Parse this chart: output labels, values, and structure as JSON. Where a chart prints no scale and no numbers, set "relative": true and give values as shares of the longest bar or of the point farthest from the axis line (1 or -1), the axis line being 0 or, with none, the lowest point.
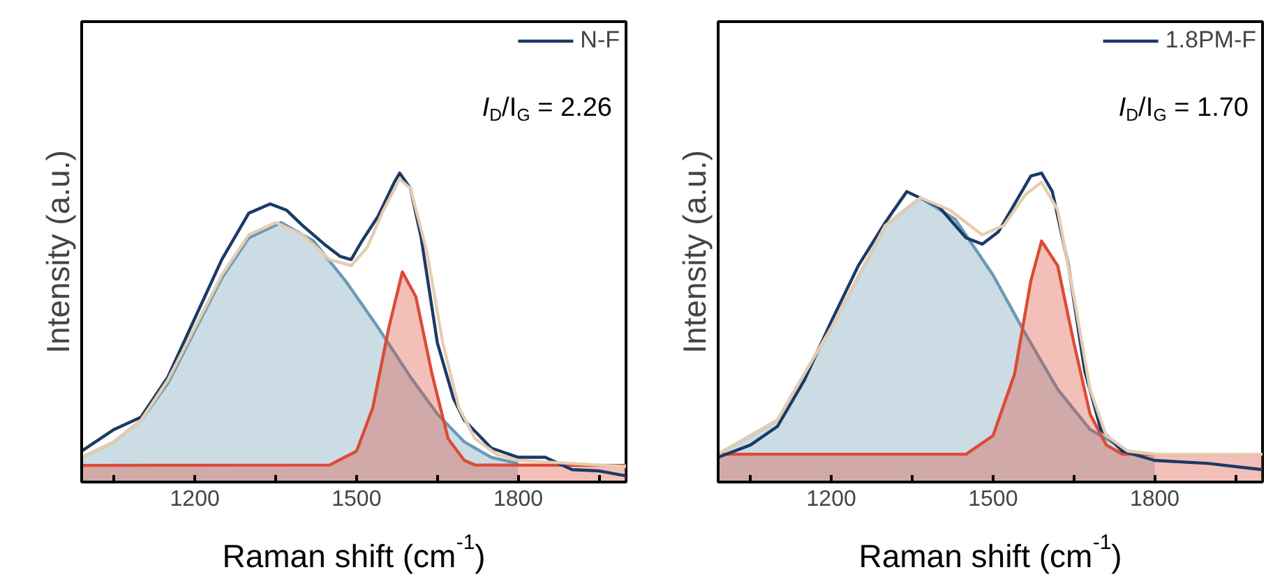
{
  "chart_data": [
    {
      "type": "line",
      "xlabel": "Raman shift (cm$^{-1}$)",
      "ylabel": "Intensity (a.u.)",
      "relative": true,
      "tick_labels": "x",
      "grid": false,
      "legend": "top right",
      "line_style": "solid",
      "xlim": [
        990,
        2000
      ],
      "xticks": [
        {
          "value": 1050,
          "label": null
        },
        1200,
        {
          "value": 1350,
          "label": null
        },
        1500,
        {
          "value": 1650,
          "label": null
        },
        1800,
        {
          "value": 1950,
          "label": null
        }
      ],
      "annotations": [
        "I$_{D}$/I$_{G}$ = 2.26"
      ],
      "series": [
        {
          "type": "area",
          "color": "#6a9ab5",
          "x": [
            990,
            1050,
            1100,
            1150,
            1200,
            1250,
            1300,
            1360,
            1420,
            1480,
            1540,
            1600,
            1650,
            1700,
            1750,
            1800
          ],
          "values": [
            0.08,
            0.13,
            0.2,
            0.32,
            0.49,
            0.66,
            0.79,
            0.84,
            0.78,
            0.65,
            0.5,
            0.34,
            0.22,
            0.13,
            0.08,
            0.06
          ]
        },
        {
          "type": "area",
          "color": "#dc4b36",
          "x": [
            990,
            1450,
            1500,
            1530,
            1560,
            1585,
            1610,
            1640,
            1670,
            1700,
            1720,
            2000
          ],
          "values": [
            0.054,
            0.055,
            0.1,
            0.24,
            0.5,
            0.68,
            0.6,
            0.35,
            0.14,
            0.07,
            0.055,
            0.054
          ]
        },
        {
          "name": "N-F",
          "color": "#1b3a66",
          "x": [
            990,
            1050,
            1100,
            1150,
            1200,
            1250,
            1300,
            1340,
            1370,
            1400,
            1440,
            1470,
            1490,
            1510,
            1540,
            1570,
            1580,
            1600,
            1620,
            1650,
            1680,
            1700,
            1750,
            1800,
            1850,
            1900,
            1950,
            2000
          ],
          "values": [
            0.1,
            0.17,
            0.21,
            0.34,
            0.53,
            0.72,
            0.87,
            0.9,
            0.88,
            0.83,
            0.77,
            0.73,
            0.72,
            0.78,
            0.86,
            0.97,
            1.0,
            0.95,
            0.79,
            0.45,
            0.27,
            0.2,
            0.11,
            0.08,
            0.08,
            0.04,
            0.036,
            0.02
          ]
        },
        {
          "type": "line",
          "color": "#e6cdb0",
          "x": [
            990,
            1050,
            1100,
            1150,
            1200,
            1250,
            1300,
            1350,
            1400,
            1450,
            1490,
            1520,
            1550,
            1580,
            1600,
            1630,
            1660,
            1690,
            1720,
            1760,
            1800,
            1900,
            2000
          ],
          "values": [
            0.08,
            0.13,
            0.2,
            0.33,
            0.5,
            0.67,
            0.8,
            0.84,
            0.8,
            0.72,
            0.7,
            0.76,
            0.88,
            0.98,
            0.95,
            0.75,
            0.45,
            0.24,
            0.14,
            0.09,
            0.07,
            0.06,
            0.05
          ]
        }
      ]
    },
    {
      "type": "line",
      "xlabel": "Raman shift (cm$^{-1}$)",
      "ylabel": "Intensity (a.u.)",
      "relative": true,
      "tick_labels": "x",
      "grid": false,
      "legend": "top right",
      "line_style": "solid",
      "xlim": [
        990,
        2000
      ],
      "xticks": [
        {
          "value": 1050,
          "label": null
        },
        1200,
        {
          "value": 1350,
          "label": null
        },
        1500,
        {
          "value": 1650,
          "label": null
        },
        1800,
        {
          "value": 1950,
          "label": null
        }
      ],
      "annotations": [
        "I$_{D}$/I$_{G}$ = 1.70"
      ],
      "series": [
        {
          "type": "area",
          "color": "#6a9ab5",
          "x": [
            990,
            1100,
            1200,
            1300,
            1365,
            1430,
            1500,
            1560,
            1620,
            1680,
            1750,
            1800
          ],
          "values": [
            0.09,
            0.2,
            0.5,
            0.83,
            0.92,
            0.85,
            0.67,
            0.48,
            0.3,
            0.17,
            0.1,
            0.09
          ]
        },
        {
          "type": "area",
          "color": "#dc4b36",
          "x": [
            990,
            1450,
            1500,
            1540,
            1570,
            1590,
            1620,
            1650,
            1680,
            1710,
            1740,
            2000
          ],
          "values": [
            0.09,
            0.09,
            0.15,
            0.35,
            0.65,
            0.78,
            0.7,
            0.45,
            0.22,
            0.12,
            0.09,
            0.09
          ]
        },
        {
          "name": "1.8PM-F",
          "color": "#1b3a66",
          "x": [
            990,
            1050,
            1100,
            1150,
            1200,
            1250,
            1300,
            1340,
            1400,
            1450,
            1480,
            1510,
            1540,
            1570,
            1590,
            1610,
            1640,
            1670,
            1700,
            1740,
            1800,
            1900,
            2000
          ],
          "values": [
            0.08,
            0.12,
            0.18,
            0.33,
            0.52,
            0.7,
            0.84,
            0.94,
            0.89,
            0.79,
            0.77,
            0.81,
            0.9,
            0.99,
            1.0,
            0.94,
            0.7,
            0.36,
            0.17,
            0.1,
            0.07,
            0.06,
            0.04
          ]
        },
        {
          "type": "line",
          "color": "#e6cdb0",
          "x": [
            990,
            1100,
            1200,
            1300,
            1365,
            1420,
            1480,
            1520,
            1560,
            1590,
            1620,
            1650,
            1680,
            1710,
            1750,
            1800,
            2000
          ],
          "values": [
            0.09,
            0.2,
            0.5,
            0.83,
            0.92,
            0.88,
            0.8,
            0.83,
            0.93,
            0.97,
            0.88,
            0.6,
            0.3,
            0.15,
            0.1,
            0.09,
            0.09
          ]
        }
      ]
    }
  ]
}
